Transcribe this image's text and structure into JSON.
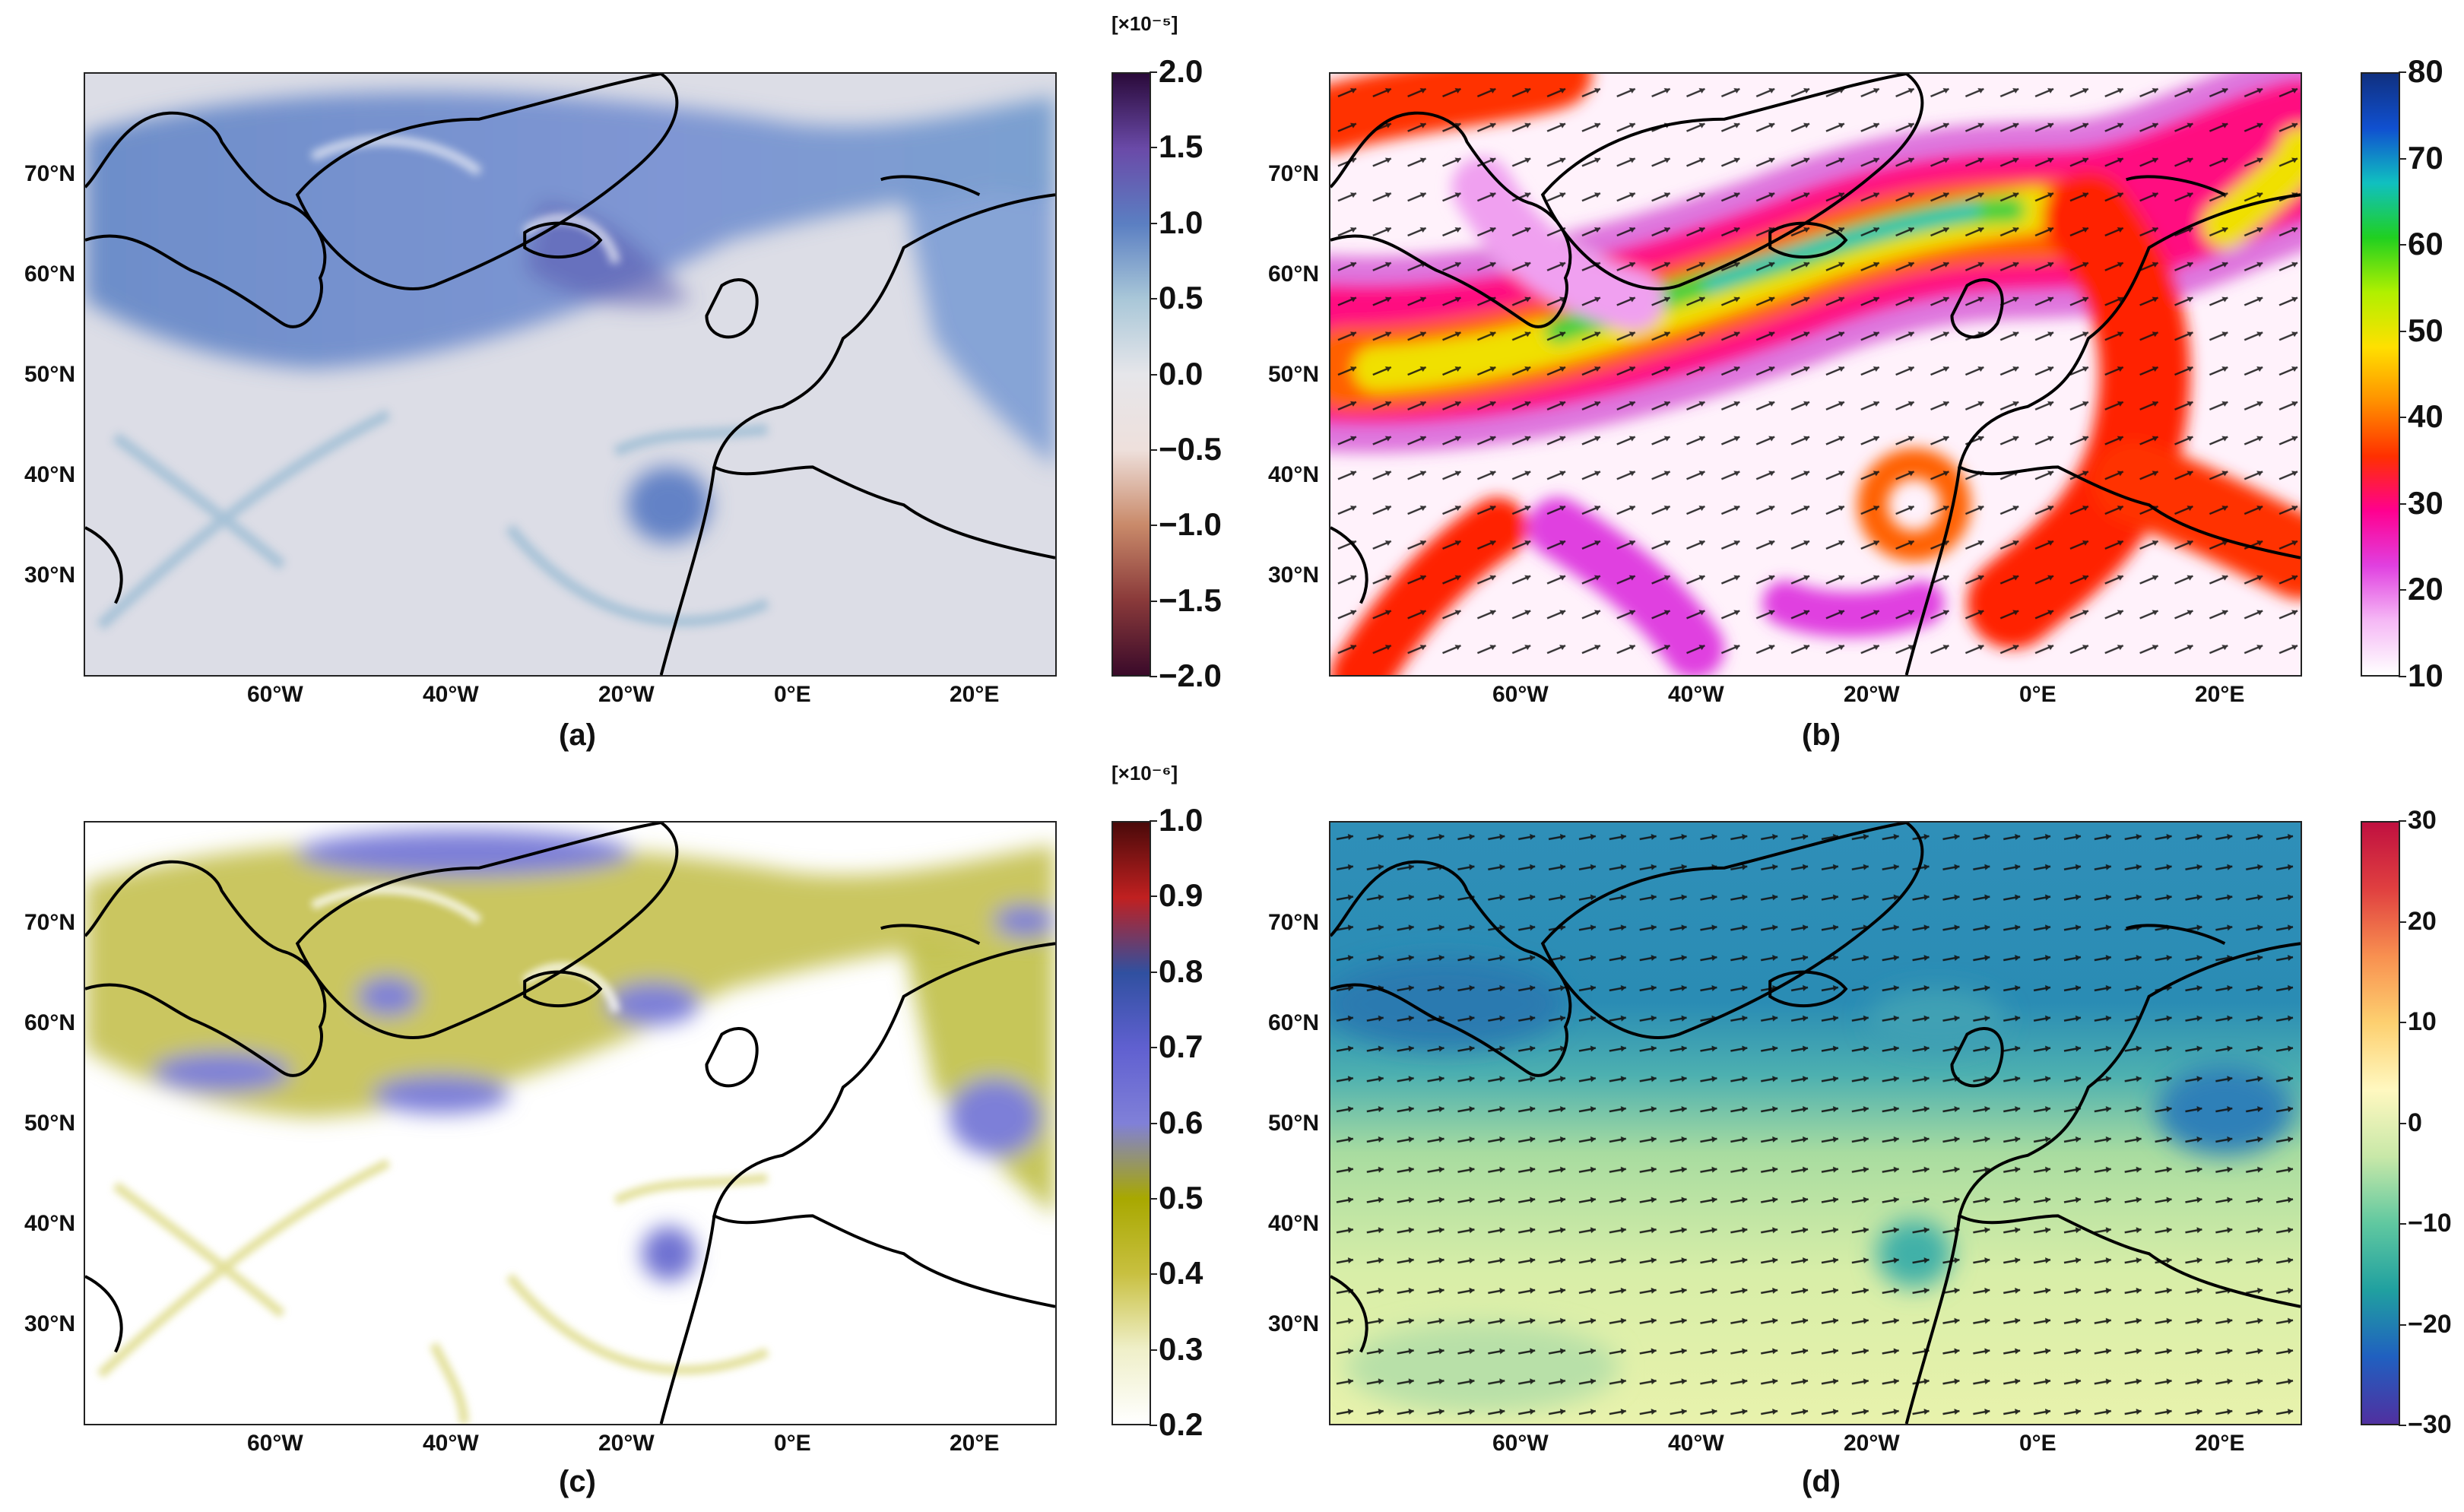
{
  "lat_ticks": [
    "70°N",
    "60°N",
    "50°N",
    "40°N",
    "30°N"
  ],
  "lon_ticks": [
    "60°W",
    "40°W",
    "20°W",
    "0°E",
    "20°E"
  ],
  "panels": [
    {
      "label": "(a)",
      "colorbar": {
        "scale": "[×10⁻⁵]",
        "ticks": [
          "2.0",
          "1.5",
          "1.0",
          "0.5",
          "0.0",
          "−0.5",
          "−1.0",
          "−1.5",
          "−2.0"
        ],
        "range": [
          -2.0,
          2.0
        ],
        "colors": [
          "#3a0a2a",
          "#8a3a3a",
          "#c98a6a",
          "#eee0dc",
          "#e6e6ea",
          "#a9c7d8",
          "#5b7fc2",
          "#6a4aa8",
          "#2a0a3a"
        ]
      }
    },
    {
      "label": "(b)",
      "colorbar": {
        "scale": "",
        "ticks": [
          "80",
          "70",
          "60",
          "50",
          "40",
          "30",
          "20",
          "10"
        ],
        "range": [
          10,
          80
        ],
        "colors": [
          "#ffffff",
          "#f5b8f5",
          "#e040e0",
          "#ff0090",
          "#ff3000",
          "#ff9000",
          "#ffe000",
          "#b0f000",
          "#20d020",
          "#10c0c0",
          "#1050d0",
          "#103080"
        ]
      }
    },
    {
      "label": "(c)",
      "colorbar": {
        "scale": "[×10⁻⁶]",
        "ticks": [
          "1.0",
          "0.9",
          "0.8",
          "0.7",
          "0.6",
          "0.5",
          "0.4",
          "0.3",
          "0.2"
        ],
        "range": [
          0.2,
          1.0
        ],
        "colors": [
          "#ffffff",
          "#efefc8",
          "#c8c040",
          "#a8a800",
          "#8080d8",
          "#6060d0",
          "#3050a0",
          "#c02020",
          "#4a0a0a"
        ]
      }
    },
    {
      "label": "(d)",
      "colorbar": {
        "scale": "",
        "ticks": [
          "30",
          "20",
          "10",
          "0",
          "−10",
          "−20",
          "−30"
        ],
        "range": [
          -30,
          30
        ],
        "colors": [
          "#5030a0",
          "#2060c0",
          "#20a0a0",
          "#60c8a0",
          "#c8e8a8",
          "#fff8c0",
          "#fdd070",
          "#f89050",
          "#e04040",
          "#c01040"
        ]
      }
    }
  ],
  "colors": {
    "land_outline": "#000000",
    "arrow": "#111111"
  }
}
